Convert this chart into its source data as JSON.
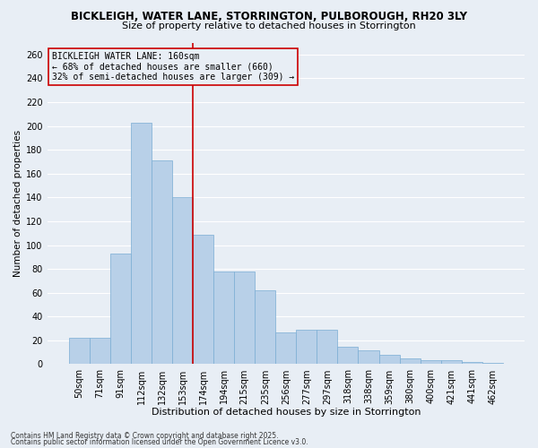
{
  "title": "BICKLEIGH, WATER LANE, STORRINGTON, PULBOROUGH, RH20 3LY",
  "subtitle": "Size of property relative to detached houses in Storrington",
  "xlabel": "Distribution of detached houses by size in Storrington",
  "ylabel": "Number of detached properties",
  "categories": [
    "50sqm",
    "71sqm",
    "91sqm",
    "112sqm",
    "132sqm",
    "153sqm",
    "174sqm",
    "194sqm",
    "215sqm",
    "235sqm",
    "256sqm",
    "277sqm",
    "297sqm",
    "318sqm",
    "338sqm",
    "359sqm",
    "380sqm",
    "400sqm",
    "421sqm",
    "441sqm",
    "462sqm"
  ],
  "values": [
    22,
    22,
    93,
    203,
    171,
    140,
    109,
    78,
    78,
    62,
    27,
    29,
    29,
    15,
    12,
    8,
    5,
    3,
    3,
    2,
    1
  ],
  "bar_color": "#b8d0e8",
  "bar_edge_color": "#7aadd4",
  "vline_x": 5.5,
  "vline_color": "#cc0000",
  "annotation_box_color": "#cc0000",
  "annotation_title": "BICKLEIGH WATER LANE: 160sqm",
  "annotation_line1": "← 68% of detached houses are smaller (660)",
  "annotation_line2": "32% of semi-detached houses are larger (309) →",
  "ylim": [
    0,
    270
  ],
  "yticks": [
    0,
    20,
    40,
    60,
    80,
    100,
    120,
    140,
    160,
    180,
    200,
    220,
    240,
    260
  ],
  "footnote1": "Contains HM Land Registry data © Crown copyright and database right 2025.",
  "footnote2": "Contains public sector information licensed under the Open Government Licence v3.0.",
  "bg_color": "#e8eef5",
  "grid_color": "#ffffff",
  "title_fontsize": 8.5,
  "subtitle_fontsize": 8,
  "xlabel_fontsize": 8,
  "ylabel_fontsize": 7.5,
  "tick_fontsize": 7,
  "annot_fontsize": 7
}
